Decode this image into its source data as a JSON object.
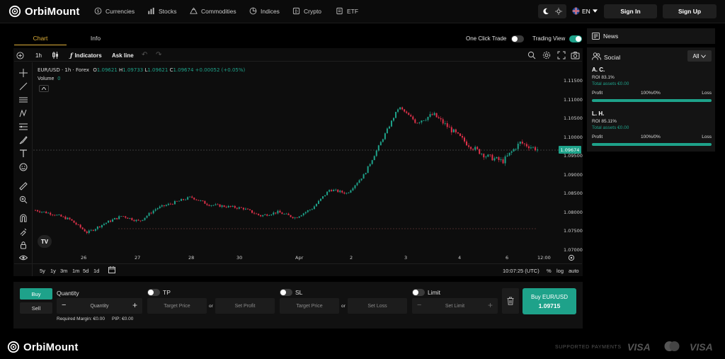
{
  "brand": "OrbiMount",
  "nav": {
    "links": [
      {
        "label": "Currencies",
        "icon": "currencies-icon"
      },
      {
        "label": "Stocks",
        "icon": "stocks-icon"
      },
      {
        "label": "Commodities",
        "icon": "commodities-icon"
      },
      {
        "label": "Indices",
        "icon": "indices-icon"
      },
      {
        "label": "Crypto",
        "icon": "crypto-icon"
      },
      {
        "label": "ETF",
        "icon": "etf-icon"
      }
    ],
    "language": "EN",
    "sign_in": "Sign In",
    "sign_up": "Sign Up"
  },
  "chart_tabs": {
    "chart": "Chart",
    "info": "Info"
  },
  "toggles": {
    "one_click_trade": "One Click Trade",
    "trading_view": "Trading View",
    "one_click_on": false,
    "trading_view_on": true
  },
  "toolbar": {
    "interval": "1h",
    "indicators": "Indicators",
    "ask_line": "Ask line"
  },
  "legend": {
    "symbol": "EUR/USD · 1h · Forex",
    "o_label": "O",
    "o": "1.09621",
    "h_label": "H",
    "h": "1.09733",
    "l_label": "L",
    "l": "1.09621",
    "c_label": "C",
    "c": "1.09674",
    "change": "+0.00052 (+0.05%)",
    "volume_label": "Volume",
    "volume_value": "0"
  },
  "chart_data": {
    "type": "candlestick",
    "price_ticks": [
      "1.11500",
      "1.11000",
      "1.10500",
      "1.10000",
      "1.09500",
      "1.09000",
      "1.08500",
      "1.08000",
      "1.07500",
      "1.07000"
    ],
    "ylim": [
      1.07,
      1.115
    ],
    "current_price": "1.09674",
    "date_ticks": [
      "26",
      "27",
      "28",
      "30",
      "Apr",
      "2",
      "3",
      "4",
      "6",
      "12:00"
    ],
    "series_close_approx": [
      1.0805,
      1.0795,
      1.078,
      1.0745,
      1.077,
      1.079,
      1.0775,
      1.081,
      1.0825,
      1.084,
      1.082,
      1.0815,
      1.081,
      1.079,
      1.08,
      1.0785,
      1.081,
      1.086,
      1.085,
      1.09,
      1.099,
      1.108,
      1.104,
      1.106,
      1.102,
      1.098,
      1.095,
      1.0935,
      1.0985,
      1.0967
    ]
  },
  "bottom_bar": {
    "ranges": [
      "5y",
      "1y",
      "3m",
      "1m",
      "5d",
      "1d"
    ],
    "time": "10:07:25 (UTC)",
    "pct": "%",
    "log": "log",
    "auto": "auto"
  },
  "order": {
    "buy": "Buy",
    "sell": "Sell",
    "quantity_label": "Quantity",
    "quantity_placeholder": "Quantity",
    "minus": "−",
    "plus": "+",
    "required_margin": "Required Margin: €0.00",
    "pip": "PIP: €0.00",
    "tp": "TP",
    "sl": "SL",
    "limit": "Limit",
    "target_price": "Target Price",
    "set_profit": "Set Profit",
    "set_loss": "Set Loss",
    "set_limit": "Set Limit",
    "or": "or",
    "buy_button": "Buy EUR/USD",
    "buy_price": "1.09715"
  },
  "right": {
    "news": "News",
    "social": "Social",
    "filter": "All",
    "traders": [
      {
        "name": "A. C.",
        "roi": "ROI 83.1%",
        "assets": "Total assets €0.00",
        "profit": "Profit",
        "ratio": "100%/0%",
        "loss": "Loss"
      },
      {
        "name": "L. H.",
        "roi": "ROI 85.11%",
        "assets": "Total assets €0.00",
        "profit": "Profit",
        "ratio": "100%/0%",
        "loss": "Loss"
      }
    ]
  },
  "footer": {
    "supported": "SUPPORTED PAYMENTS",
    "visa": "VISA",
    "visa2": "VISA"
  },
  "colors": {
    "accent": "#1ea28a",
    "down": "#e0314a",
    "up": "#1ea28a"
  }
}
